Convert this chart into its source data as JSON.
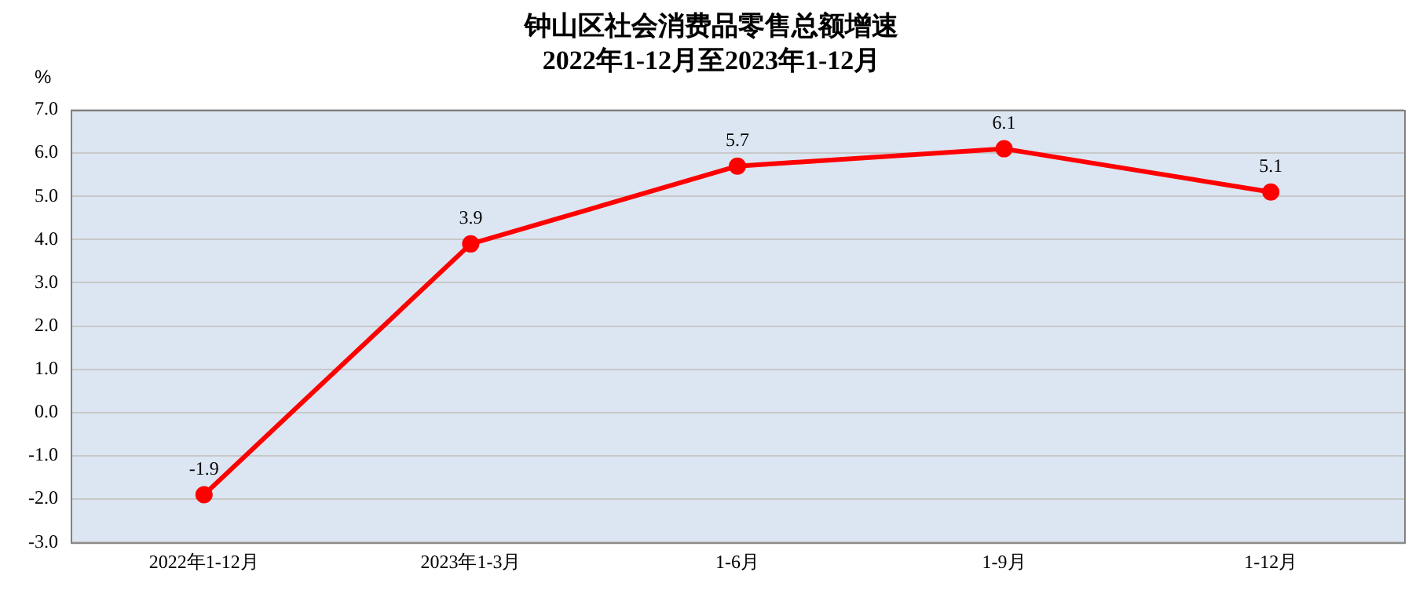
{
  "chart_data": {
    "type": "line",
    "title": "钟山区社会消费品零售总额增速",
    "subtitle": "2022年1-12月至2023年1-12月",
    "ylabel": "%",
    "categories": [
      "2022年1-12月",
      "2023年1-3月",
      "1-6月",
      "1-9月",
      "1-12月"
    ],
    "series": [
      {
        "color": "#ff0000",
        "values": [
          -1.9,
          3.9,
          5.7,
          6.1,
          5.1
        ]
      }
    ],
    "ylim": [
      -3,
      7
    ],
    "yticks": [
      {
        "value": -3,
        "label": "-3.0"
      },
      {
        "value": -2,
        "label": "-2.0"
      },
      {
        "value": -1,
        "label": "-1.0"
      },
      {
        "value": 0,
        "label": "0.0"
      },
      {
        "value": 1,
        "label": "1.0"
      },
      {
        "value": 2,
        "label": "2.0"
      },
      {
        "value": 3,
        "label": "3.0"
      },
      {
        "value": 4,
        "label": "4.0"
      },
      {
        "value": 5,
        "label": "5.0"
      },
      {
        "value": 6,
        "label": "6.0"
      },
      {
        "value": 7,
        "label": "7.0"
      }
    ],
    "grid": "y",
    "legend": false,
    "marker": "circle",
    "line_style": "solid",
    "data_labels": true
  }
}
